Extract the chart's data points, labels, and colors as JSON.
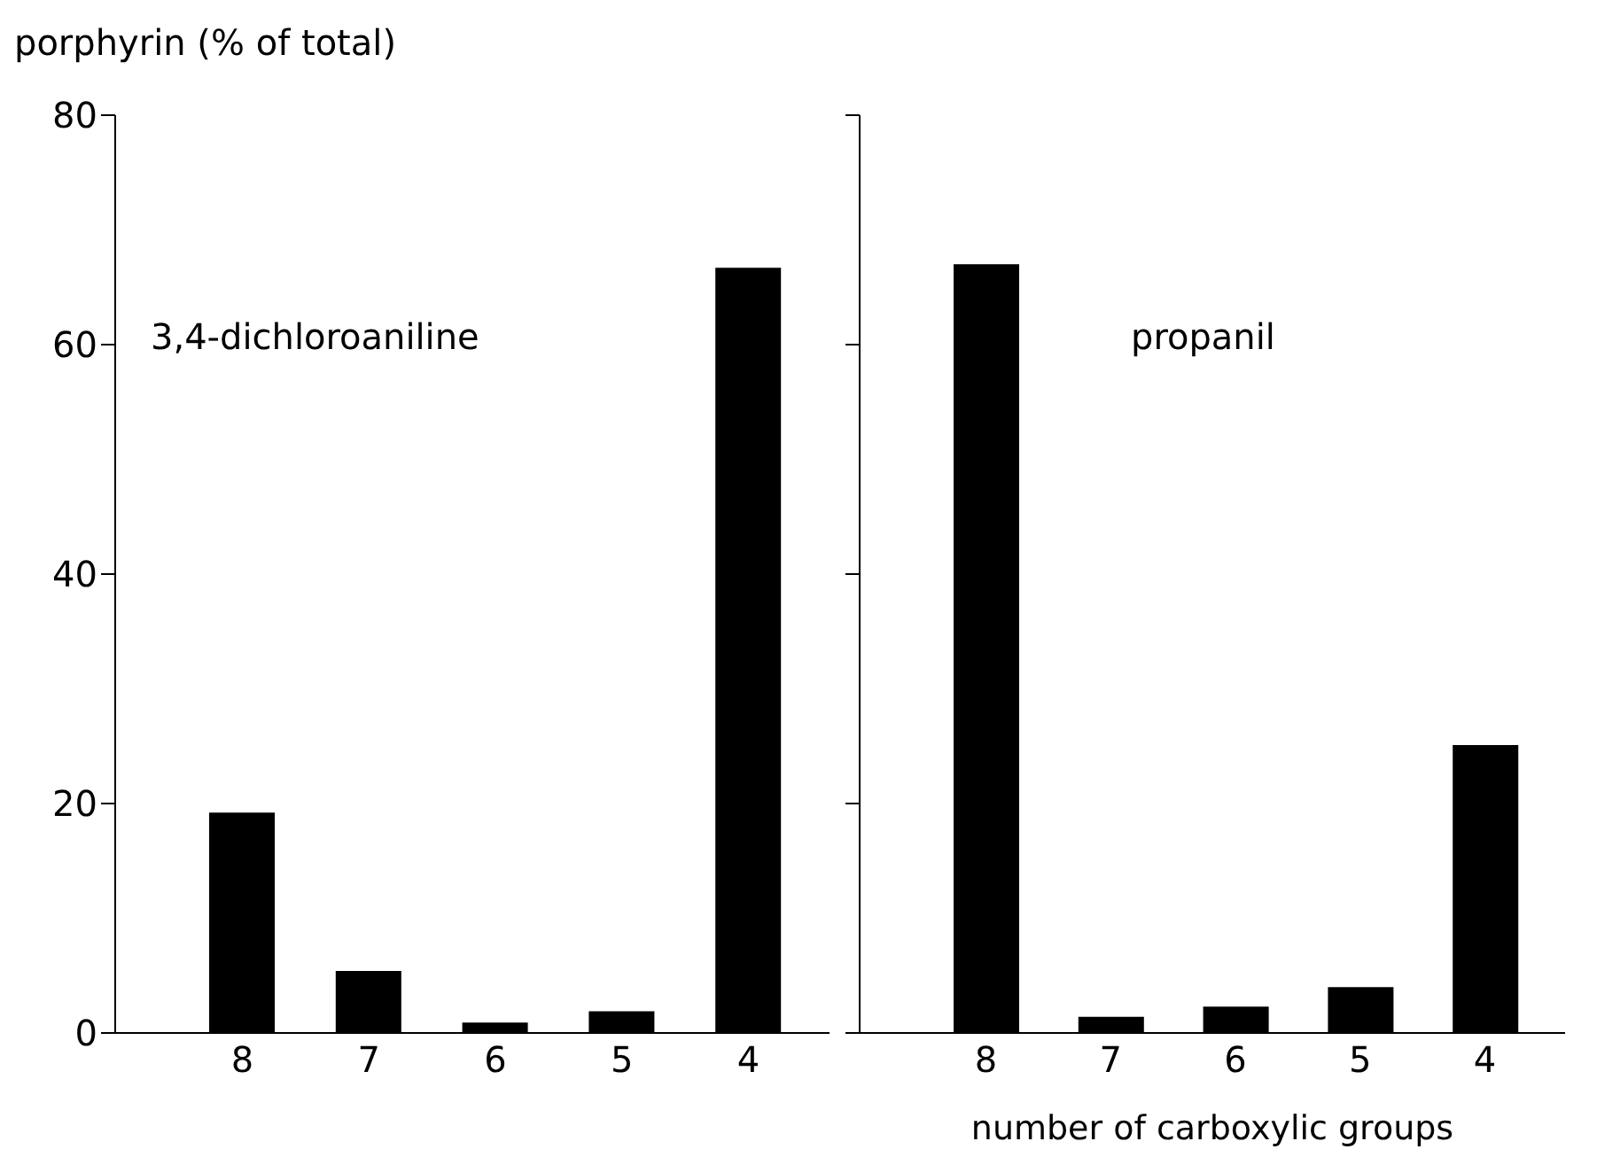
{
  "chart_data": [
    {
      "type": "bar",
      "ylabel": "porphyrin (% of total)",
      "categories": [
        "8",
        "7",
        "6",
        "5",
        "4"
      ],
      "values": [
        19.2,
        5.4,
        0.9,
        1.9,
        66.7
      ],
      "color": "#000000",
      "ylim": [
        0,
        80
      ],
      "yticks": [
        0,
        20,
        40,
        60,
        80
      ],
      "annotations": [
        "3,4-dichloroaniline"
      ],
      "grid": false,
      "legend": false
    },
    {
      "type": "bar",
      "xlabel": "number of carboxylic groups",
      "categories": [
        "8",
        "7",
        "6",
        "5",
        "4"
      ],
      "values": [
        67.0,
        1.4,
        2.3,
        4.0,
        25.1
      ],
      "color": "#000000",
      "ylim": [
        0,
        80
      ],
      "yticks": [
        0,
        20,
        40,
        60,
        80
      ],
      "tick_labels": "x",
      "annotations": [
        "propanil"
      ],
      "grid": false,
      "legend": false
    }
  ]
}
